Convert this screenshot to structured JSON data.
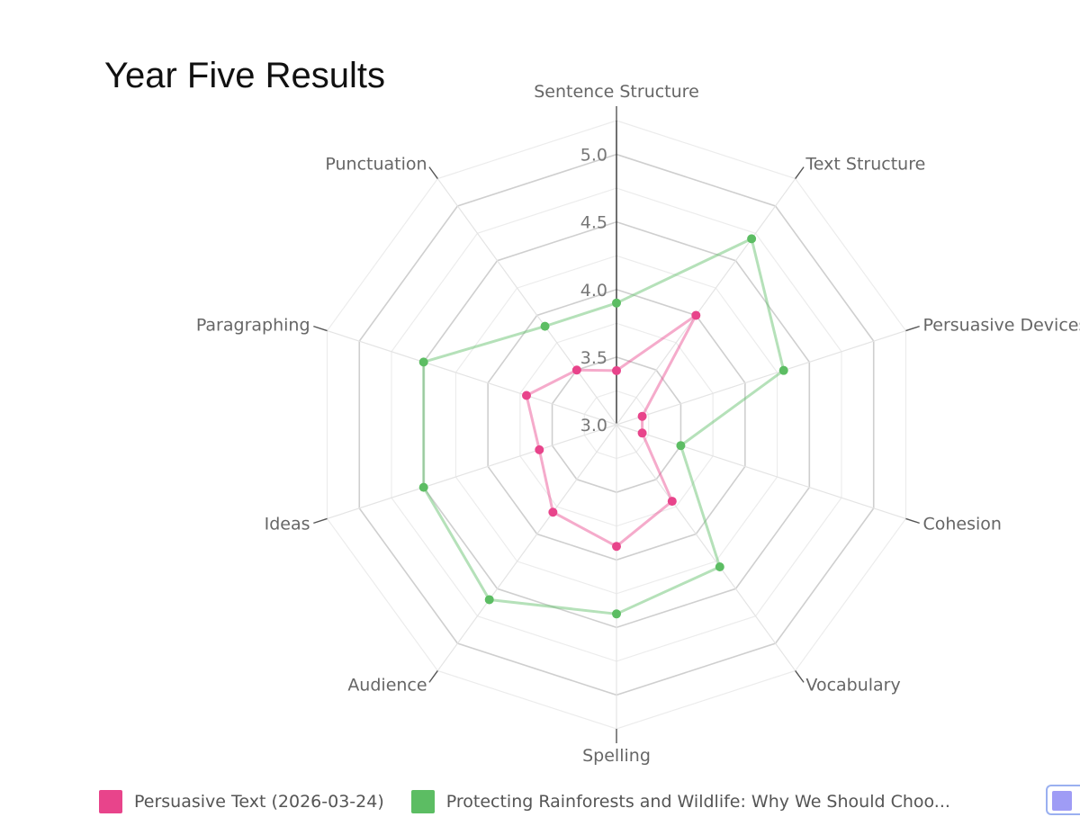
{
  "chart_data": {
    "type": "radar",
    "title": "Year Five Results",
    "axes": [
      "Sentence Structure",
      "Text Structure",
      "Persuasive Devices",
      "Cohesion",
      "Vocabulary",
      "Spelling",
      "Audience",
      "Ideas",
      "Paragraphing",
      "Punctuation"
    ],
    "rlim": [
      3.0,
      5.0
    ],
    "ticks": [
      "3.0",
      "3.5",
      "4.0",
      "4.5",
      "5.0"
    ],
    "tick_values": [
      3.0,
      3.5,
      4.0,
      4.5,
      5.0
    ],
    "grid": true,
    "legend_position": "bottom",
    "series": [
      {
        "name": "Persuasive Text (2026-03-24)",
        "color": "#e8448b",
        "values": [
          3.4,
          4.0,
          3.2,
          3.2,
          3.7,
          3.9,
          3.8,
          3.6,
          3.7,
          3.5
        ]
      },
      {
        "name": "Protecting Rainforests and Wildlife: Why We Should Choo...",
        "color": "#5cbd63",
        "values": [
          3.9,
          4.7,
          4.3,
          3.5,
          4.3,
          4.4,
          4.6,
          4.5,
          4.5,
          3.9
        ]
      },
      {
        "name": "",
        "color": "#9f9cf5",
        "values": []
      }
    ]
  }
}
